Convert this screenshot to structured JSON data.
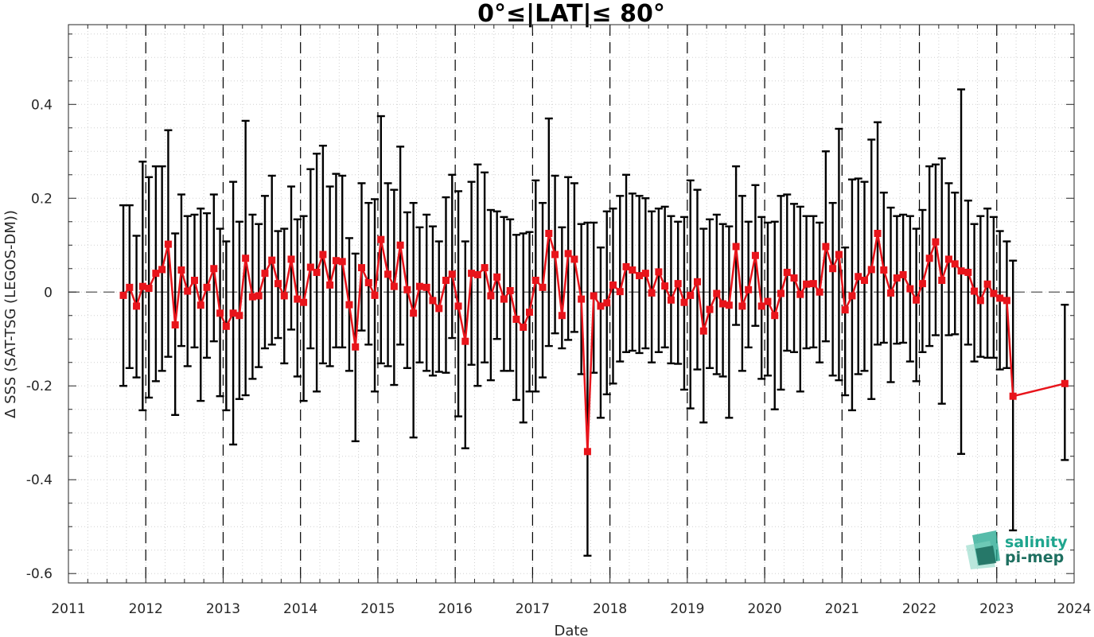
{
  "chart_data": {
    "type": "line",
    "title": "0°≤|LAT|≤ 80°",
    "xlabel": "Date",
    "ylabel": "Δ SSS (SAT-TSG (LEGOS-DM))",
    "xlim": [
      2011,
      2024
    ],
    "ylim": [
      -0.62,
      0.57
    ],
    "xticks": [
      2011,
      2012,
      2013,
      2014,
      2015,
      2016,
      2017,
      2018,
      2019,
      2020,
      2021,
      2022,
      2023,
      2024
    ],
    "xtick_labels": [
      "2011",
      "2012",
      "2013",
      "2014",
      "2015",
      "2016",
      "2017",
      "2018",
      "2019",
      "2020",
      "2021",
      "2022",
      "2023",
      "2024"
    ],
    "yticks": [
      -0.6,
      -0.4,
      -0.2,
      0,
      0.2,
      0.4
    ],
    "ytick_labels": [
      "-0.6",
      "-0.4",
      "-0.2",
      "0",
      "0.2",
      "0.4"
    ],
    "grid": true,
    "year_divider_lines": true,
    "zero_reference_line": true,
    "series": [
      {
        "color": "#e8141b",
        "marker": "square",
        "errorbar_color": "#000000",
        "x": [
          2011.71,
          2011.79,
          2011.88,
          2011.96,
          2012.04,
          2012.13,
          2012.21,
          2012.29,
          2012.38,
          2012.46,
          2012.54,
          2012.63,
          2012.71,
          2012.79,
          2012.88,
          2012.96,
          2013.04,
          2013.13,
          2013.21,
          2013.29,
          2013.38,
          2013.46,
          2013.54,
          2013.63,
          2013.71,
          2013.79,
          2013.88,
          2013.96,
          2014.04,
          2014.13,
          2014.21,
          2014.29,
          2014.38,
          2014.46,
          2014.54,
          2014.63,
          2014.71,
          2014.79,
          2014.88,
          2014.96,
          2015.04,
          2015.13,
          2015.21,
          2015.29,
          2015.38,
          2015.46,
          2015.54,
          2015.63,
          2015.71,
          2015.79,
          2015.88,
          2015.96,
          2016.04,
          2016.13,
          2016.21,
          2016.29,
          2016.38,
          2016.46,
          2016.54,
          2016.63,
          2016.71,
          2016.79,
          2016.88,
          2016.96,
          2017.04,
          2017.13,
          2017.21,
          2017.29,
          2017.38,
          2017.46,
          2017.54,
          2017.63,
          2017.71,
          2017.79,
          2017.88,
          2017.96,
          2018.04,
          2018.13,
          2018.21,
          2018.29,
          2018.38,
          2018.46,
          2018.54,
          2018.63,
          2018.71,
          2018.79,
          2018.88,
          2018.96,
          2019.04,
          2019.13,
          2019.21,
          2019.29,
          2019.38,
          2019.46,
          2019.54,
          2019.63,
          2019.71,
          2019.79,
          2019.88,
          2019.96,
          2020.04,
          2020.13,
          2020.21,
          2020.29,
          2020.38,
          2020.46,
          2020.54,
          2020.63,
          2020.71,
          2020.79,
          2020.88,
          2020.96,
          2021.04,
          2021.13,
          2021.21,
          2021.29,
          2021.38,
          2021.46,
          2021.54,
          2021.63,
          2021.71,
          2021.79,
          2021.88,
          2021.96,
          2022.04,
          2022.13,
          2022.21,
          2022.29,
          2022.38,
          2022.46,
          2022.54,
          2022.63,
          2022.71,
          2022.79,
          2022.88,
          2022.96,
          2023.04,
          2023.13,
          2023.21,
          2023.88
        ],
        "y": [
          -0.007,
          0.01,
          -0.03,
          0.012,
          0.008,
          0.04,
          0.048,
          0.102,
          -0.07,
          0.047,
          0.002,
          0.025,
          -0.028,
          0.01,
          0.05,
          -0.045,
          -0.073,
          -0.045,
          -0.05,
          0.072,
          -0.01,
          -0.008,
          0.04,
          0.068,
          0.018,
          -0.008,
          0.07,
          -0.015,
          -0.022,
          0.053,
          0.042,
          0.08,
          0.015,
          0.067,
          0.065,
          -0.027,
          -0.117,
          0.052,
          0.02,
          -0.007,
          0.112,
          0.038,
          0.012,
          0.1,
          0.005,
          -0.045,
          0.012,
          0.01,
          -0.018,
          -0.035,
          0.025,
          0.038,
          -0.03,
          -0.105,
          0.04,
          0.037,
          0.052,
          -0.008,
          0.032,
          -0.015,
          0.003,
          -0.058,
          -0.075,
          -0.043,
          0.025,
          0.01,
          0.125,
          0.08,
          -0.05,
          0.082,
          0.07,
          -0.015,
          -0.34,
          -0.008,
          -0.03,
          -0.023,
          0.015,
          0.001,
          0.054,
          0.047,
          0.035,
          0.04,
          -0.002,
          0.043,
          0.013,
          -0.017,
          0.018,
          -0.022,
          -0.007,
          0.022,
          -0.083,
          -0.037,
          -0.003,
          -0.025,
          -0.028,
          0.097,
          -0.03,
          0.005,
          0.078,
          -0.03,
          -0.02,
          -0.05,
          -0.003,
          0.042,
          0.03,
          -0.005,
          0.017,
          0.018,
          0.0,
          0.097,
          0.05,
          0.08,
          -0.038,
          -0.008,
          0.033,
          0.025,
          0.048,
          0.125,
          0.047,
          -0.002,
          0.03,
          0.037,
          0.007,
          -0.017,
          0.018,
          0.072,
          0.107,
          0.025,
          0.07,
          0.06,
          0.045,
          0.042,
          0.002,
          -0.018,
          0.017,
          -0.003,
          -0.013,
          -0.018,
          -0.222,
          -0.195
        ],
        "err_upper": [
          0.185,
          0.185,
          0.12,
          0.278,
          0.245,
          0.268,
          0.268,
          0.345,
          0.125,
          0.208,
          0.162,
          0.165,
          0.178,
          0.168,
          0.208,
          0.135,
          0.108,
          0.235,
          0.15,
          0.365,
          0.165,
          0.145,
          0.205,
          0.248,
          0.13,
          0.135,
          0.225,
          0.155,
          0.162,
          0.262,
          0.295,
          0.312,
          0.225,
          0.252,
          0.248,
          0.115,
          0.082,
          0.232,
          0.19,
          0.198,
          0.375,
          0.232,
          0.218,
          0.31,
          0.17,
          0.19,
          0.138,
          0.165,
          0.14,
          0.108,
          0.202,
          0.25,
          0.215,
          0.108,
          0.235,
          0.272,
          0.255,
          0.175,
          0.172,
          0.16,
          0.155,
          0.122,
          0.125,
          0.128,
          0.238,
          0.19,
          0.37,
          0.248,
          0.138,
          0.245,
          0.232,
          0.145,
          0.148,
          0.148,
          0.095,
          0.172,
          0.178,
          0.205,
          0.25,
          0.21,
          0.205,
          0.2,
          0.172,
          0.178,
          0.182,
          0.162,
          0.15,
          0.16,
          0.238,
          0.218,
          0.135,
          0.155,
          0.165,
          0.145,
          0.14,
          0.268,
          0.205,
          0.15,
          0.228,
          0.16,
          0.148,
          0.15,
          0.205,
          0.208,
          0.188,
          0.182,
          0.162,
          0.162,
          0.148,
          0.3,
          0.19,
          0.348,
          0.095,
          0.24,
          0.242,
          0.235,
          0.325,
          0.362,
          0.212,
          0.18,
          0.162,
          0.165,
          0.162,
          0.135,
          0.175,
          0.268,
          0.272,
          0.285,
          0.232,
          0.212,
          0.432,
          0.195,
          0.145,
          0.162,
          0.178,
          0.16,
          0.13,
          0.108,
          0.067,
          -0.027
        ],
        "err_lower": [
          -0.2,
          -0.162,
          -0.182,
          -0.252,
          -0.225,
          -0.19,
          -0.168,
          -0.138,
          -0.262,
          -0.115,
          -0.158,
          -0.118,
          -0.232,
          -0.14,
          -0.105,
          -0.222,
          -0.252,
          -0.325,
          -0.228,
          -0.22,
          -0.185,
          -0.16,
          -0.12,
          -0.112,
          -0.098,
          -0.152,
          -0.08,
          -0.18,
          -0.232,
          -0.12,
          -0.212,
          -0.152,
          -0.158,
          -0.118,
          -0.118,
          -0.168,
          -0.318,
          -0.082,
          -0.112,
          -0.212,
          -0.152,
          -0.158,
          -0.198,
          -0.112,
          -0.162,
          -0.31,
          -0.15,
          -0.168,
          -0.178,
          -0.17,
          -0.172,
          -0.098,
          -0.265,
          -0.333,
          -0.155,
          -0.2,
          -0.15,
          -0.188,
          -0.1,
          -0.168,
          -0.168,
          -0.23,
          -0.278,
          -0.212,
          -0.212,
          -0.182,
          -0.115,
          -0.088,
          -0.12,
          -0.102,
          -0.085,
          -0.175,
          -0.562,
          -0.172,
          -0.268,
          -0.218,
          -0.195,
          -0.148,
          -0.128,
          -0.125,
          -0.13,
          -0.12,
          -0.15,
          -0.128,
          -0.118,
          -0.152,
          -0.153,
          -0.208,
          -0.248,
          -0.165,
          -0.278,
          -0.162,
          -0.175,
          -0.18,
          -0.268,
          -0.07,
          -0.168,
          -0.118,
          -0.072,
          -0.185,
          -0.178,
          -0.25,
          -0.208,
          -0.125,
          -0.128,
          -0.212,
          -0.12,
          -0.118,
          -0.15,
          -0.105,
          -0.178,
          -0.188,
          -0.22,
          -0.252,
          -0.175,
          -0.168,
          -0.228,
          -0.112,
          -0.108,
          -0.192,
          -0.11,
          -0.108,
          -0.148,
          -0.19,
          -0.128,
          -0.115,
          -0.092,
          -0.238,
          -0.092,
          -0.09,
          -0.345,
          -0.112,
          -0.148,
          -0.138,
          -0.14,
          -0.14,
          -0.165,
          -0.162,
          -0.508,
          -0.358
        ]
      }
    ]
  },
  "logo": {
    "line1": "salinity",
    "line2": "pi-mep",
    "color_teal": "#1fa58e",
    "color_dark": "#1e6f60"
  }
}
